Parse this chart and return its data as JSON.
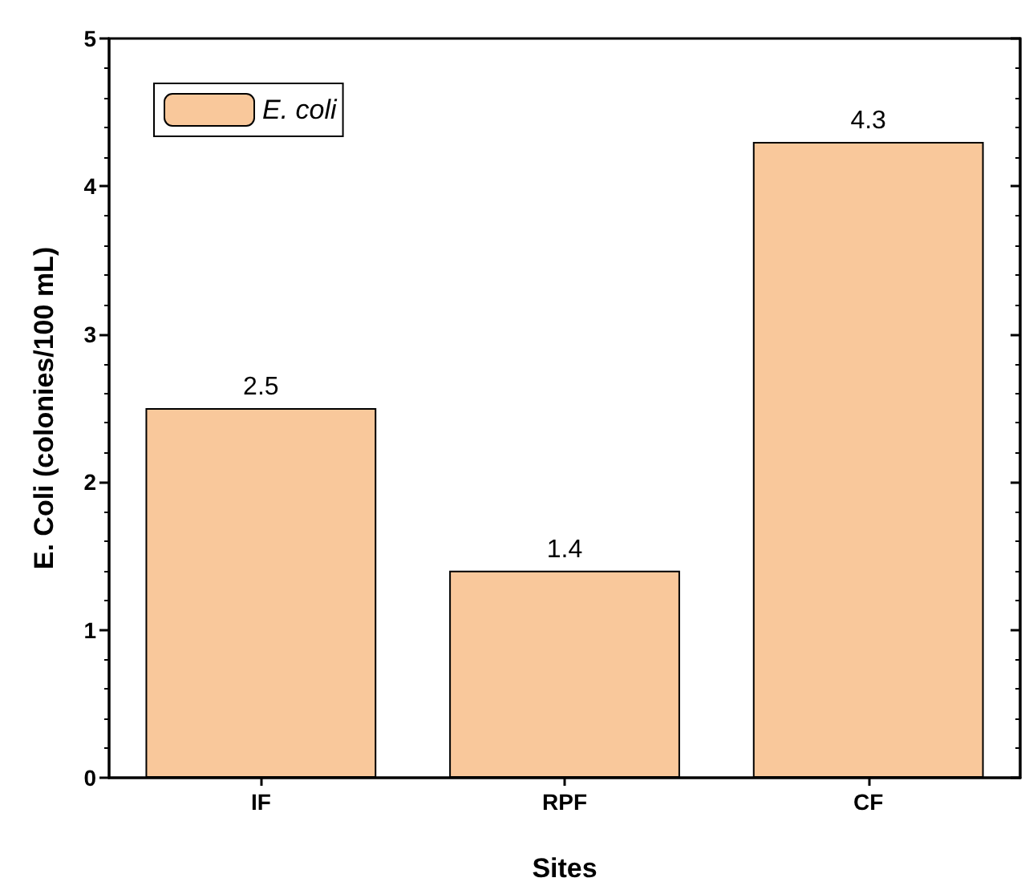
{
  "chart_data": {
    "type": "bar",
    "xlabel": "Sites",
    "ylabel": "E. Coli (colonies/100 mL)",
    "categories": [
      "IF",
      "RPF",
      "CF"
    ],
    "series": [
      {
        "name": "E. coli",
        "color": "#f9c89b",
        "values": [
          2.5,
          1.4,
          4.3
        ]
      }
    ],
    "ylim": [
      0,
      5
    ],
    "yticks": [
      0,
      1,
      2,
      3,
      4,
      5
    ],
    "data_labels": true,
    "legend": "top left",
    "grid": false
  }
}
